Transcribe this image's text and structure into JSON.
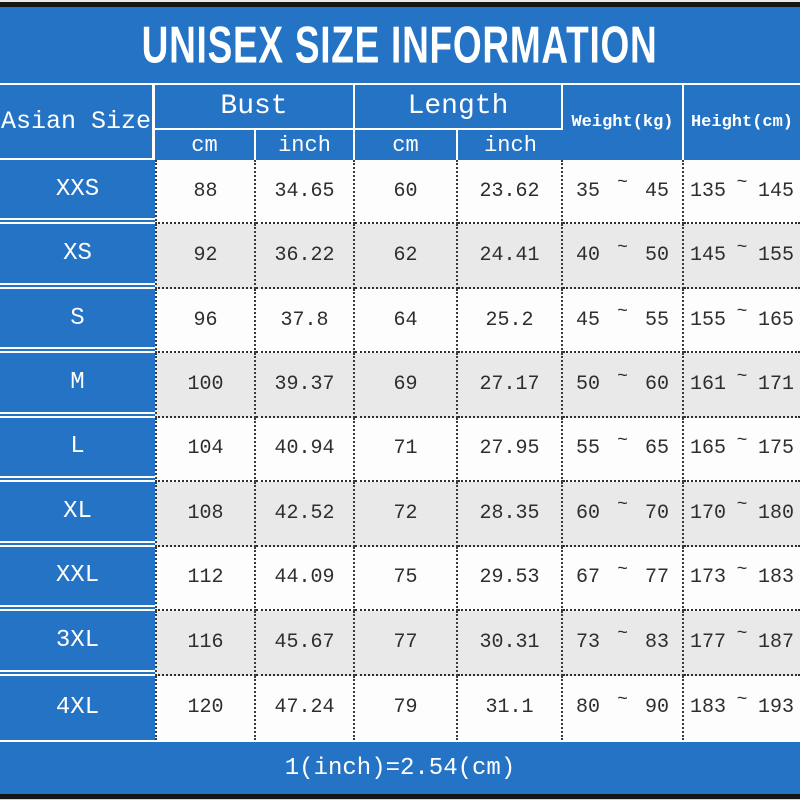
{
  "title": "UNISEX SIZE INFORMATION",
  "footer_note": "1(inch)=2.54(cm)",
  "colors": {
    "primary_blue": "#2473c4",
    "alt_row_gray": "#e9e9e9",
    "text_dark": "#2e2e2e"
  },
  "table": {
    "asian_size_header": "Asian Size",
    "bust_header": "Bust",
    "length_header": "Length",
    "sub_headers": [
      "cm",
      "inch",
      "cm",
      "inch"
    ],
    "weight_header": "Weight(kg)",
    "height_header": "Height(cm)",
    "tilde": "~",
    "rows": [
      {
        "size": "XXS",
        "bust_cm": "88",
        "bust_inch": "34.65",
        "length_cm": "60",
        "length_inch": "23.62",
        "weight_min": "35",
        "weight_max": "45",
        "height_min": "135",
        "height_max": "145"
      },
      {
        "size": "XS",
        "bust_cm": "92",
        "bust_inch": "36.22",
        "length_cm": "62",
        "length_inch": "24.41",
        "weight_min": "40",
        "weight_max": "50",
        "height_min": "145",
        "height_max": "155"
      },
      {
        "size": "S",
        "bust_cm": "96",
        "bust_inch": "37.8",
        "length_cm": "64",
        "length_inch": "25.2",
        "weight_min": "45",
        "weight_max": "55",
        "height_min": "155",
        "height_max": "165"
      },
      {
        "size": "M",
        "bust_cm": "100",
        "bust_inch": "39.37",
        "length_cm": "69",
        "length_inch": "27.17",
        "weight_min": "50",
        "weight_max": "60",
        "height_min": "161",
        "height_max": "171"
      },
      {
        "size": "L",
        "bust_cm": "104",
        "bust_inch": "40.94",
        "length_cm": "71",
        "length_inch": "27.95",
        "weight_min": "55",
        "weight_max": "65",
        "height_min": "165",
        "height_max": "175"
      },
      {
        "size": "XL",
        "bust_cm": "108",
        "bust_inch": "42.52",
        "length_cm": "72",
        "length_inch": "28.35",
        "weight_min": "60",
        "weight_max": "70",
        "height_min": "170",
        "height_max": "180"
      },
      {
        "size": "XXL",
        "bust_cm": "112",
        "bust_inch": "44.09",
        "length_cm": "75",
        "length_inch": "29.53",
        "weight_min": "67",
        "weight_max": "77",
        "height_min": "173",
        "height_max": "183"
      },
      {
        "size": "3XL",
        "bust_cm": "116",
        "bust_inch": "45.67",
        "length_cm": "77",
        "length_inch": "30.31",
        "weight_min": "73",
        "weight_max": "83",
        "height_min": "177",
        "height_max": "187"
      },
      {
        "size": "4XL",
        "bust_cm": "120",
        "bust_inch": "47.24",
        "length_cm": "79",
        "length_inch": "31.1",
        "weight_min": "80",
        "weight_max": "90",
        "height_min": "183",
        "height_max": "193"
      }
    ]
  }
}
